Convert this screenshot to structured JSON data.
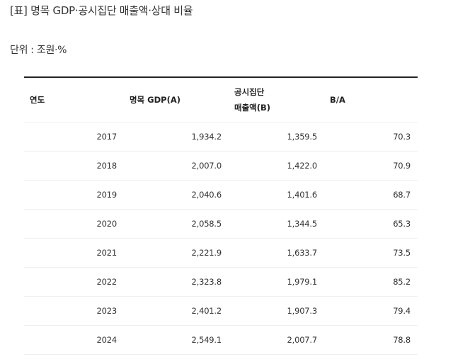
{
  "title": "[표] 명목 GDP·공시집단 매출액·상대 비율",
  "unit": "단위 : 조원·%",
  "table": {
    "headers": {
      "year": "연도",
      "gdp": "명목 GDP(A)",
      "sales_line1": "공시집단",
      "sales_line2": "매출액(B)",
      "ratio": "B/A"
    },
    "rows": [
      {
        "year": "2017",
        "gdp": "1,934.2",
        "sales": "1,359.5",
        "ratio": "70.3"
      },
      {
        "year": "2018",
        "gdp": "2,007.0",
        "sales": "1,422.0",
        "ratio": "70.9"
      },
      {
        "year": "2019",
        "gdp": "2,040.6",
        "sales": "1,401.6",
        "ratio": "68.7"
      },
      {
        "year": "2020",
        "gdp": "2,058.5",
        "sales": "1,344.5",
        "ratio": "65.3"
      },
      {
        "year": "2021",
        "gdp": "2,221.9",
        "sales": "1,633.7",
        "ratio": "73.5"
      },
      {
        "year": "2022",
        "gdp": "2,323.8",
        "sales": "1,979.1",
        "ratio": "85.2"
      },
      {
        "year": "2023",
        "gdp": "2,401.2",
        "sales": "1,907.3",
        "ratio": "79.4"
      },
      {
        "year": "2024",
        "gdp": "2,549.1",
        "sales": "2,007.7",
        "ratio": "78.8"
      }
    ]
  }
}
